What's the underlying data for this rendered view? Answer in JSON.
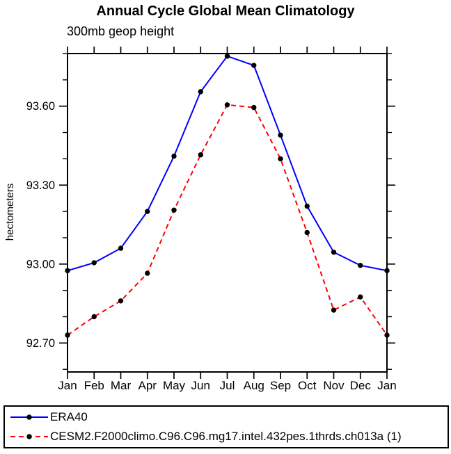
{
  "chart_data": {
    "type": "line",
    "title": "Annual Cycle Global Mean Climatology",
    "subtitle": "300mb geop height",
    "ylabel": "hectometers",
    "categories": [
      "Jan",
      "Feb",
      "Mar",
      "Apr",
      "May",
      "Jun",
      "Jul",
      "Aug",
      "Sep",
      "Oct",
      "Nov",
      "Dec",
      "Jan"
    ],
    "series": [
      {
        "name": "ERA40",
        "color": "#0000ff",
        "style": "solid",
        "marker": "black-dot",
        "values": [
          92.975,
          93.005,
          93.06,
          93.2,
          93.41,
          93.655,
          93.79,
          93.755,
          93.49,
          93.22,
          93.045,
          92.995,
          92.975
        ]
      },
      {
        "name": "CESM2.F2000climo.C96.C96.mg17.intel.432pes.1thrds.ch013a (1)",
        "color": "#ff0000",
        "style": "dashed",
        "marker": "black-dot",
        "values": [
          92.73,
          92.8,
          92.86,
          92.965,
          93.205,
          93.415,
          93.605,
          93.595,
          93.4,
          93.12,
          92.825,
          92.875,
          92.73
        ]
      }
    ],
    "ylim": [
      92.59,
      93.8
    ],
    "yticks_major": [
      92.7,
      93.0,
      93.3,
      93.6
    ],
    "ytick_labels": [
      "92.70",
      "93.00",
      "93.30",
      "93.60"
    ],
    "yminor_step": 0.1,
    "marker_color": "#000000",
    "axis_color": "#000000",
    "grid": false,
    "legend_position": "bottom"
  }
}
